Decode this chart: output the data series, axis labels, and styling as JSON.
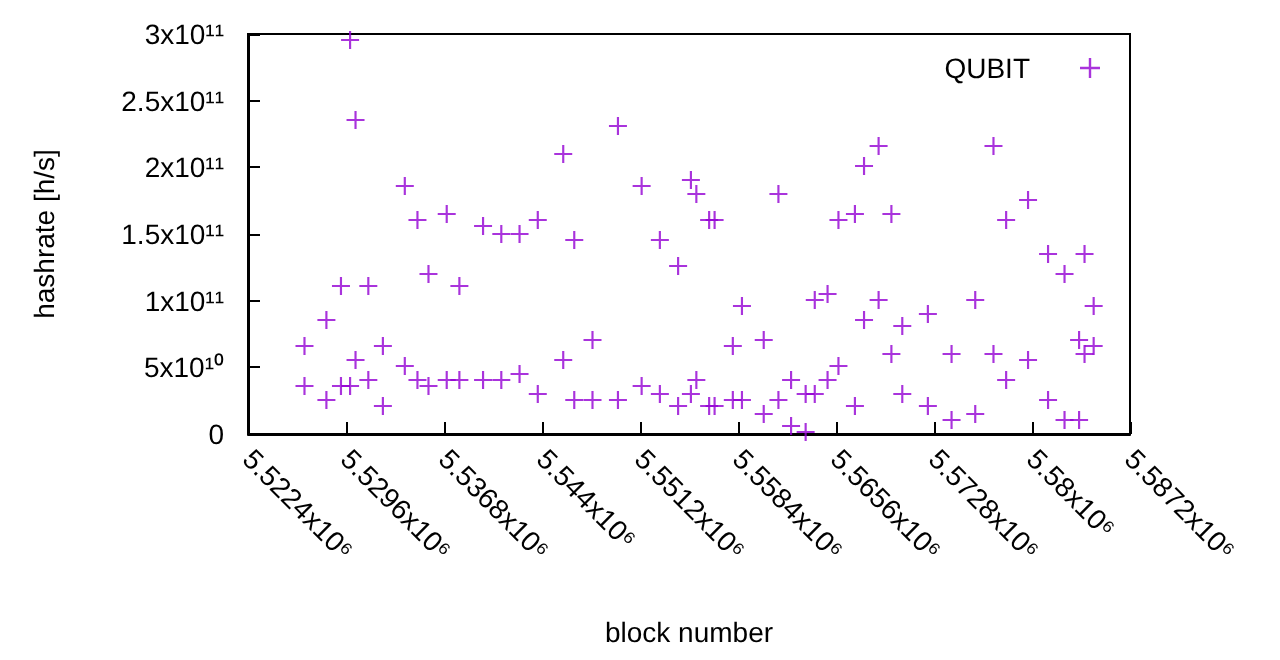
{
  "chart_data": {
    "type": "scatter",
    "xlabel": "block number",
    "ylabel": "hashrate [h/s]",
    "xlim": [
      5522400,
      5587200
    ],
    "xticks": [
      {
        "value": 5522400,
        "label": "5.5224x10⁶"
      },
      {
        "value": 5529600,
        "label": "5.5296x10⁶"
      },
      {
        "value": 5536800,
        "label": "5.5368x10⁶"
      },
      {
        "value": 5544000,
        "label": "5.544x10⁶"
      },
      {
        "value": 5551200,
        "label": "5.5512x10⁶"
      },
      {
        "value": 5558400,
        "label": "5.5584x10⁶"
      },
      {
        "value": 5565600,
        "label": "5.5656x10⁶"
      },
      {
        "value": 5572800,
        "label": "5.5728x10⁶"
      },
      {
        "value": 5580000,
        "label": "5.58x10⁶"
      },
      {
        "value": 5587200,
        "label": "5.5872x10⁶"
      }
    ],
    "ylim": [
      0,
      300000000000
    ],
    "yticks": [
      0,
      {
        "value": 50000000000,
        "label": "5x10¹⁰"
      },
      {
        "value": 100000000000,
        "label": "1x10¹¹"
      },
      {
        "value": 150000000000,
        "label": "1.5x10¹¹"
      },
      {
        "value": 200000000000,
        "label": "2x10¹¹"
      },
      {
        "value": 250000000000,
        "label": "2.5x10¹¹"
      },
      {
        "value": 300000000000,
        "label": "3x10¹¹"
      }
    ],
    "grid": false,
    "legend": "top right",
    "marker": "cross",
    "series": [
      {
        "name": "QUBIT",
        "color": "#9400d3",
        "x": [
          5526550,
          5526550,
          5528160,
          5528160,
          5529230,
          5529230,
          5529900,
          5529900,
          5530300,
          5530300,
          5531240,
          5531240,
          5532310,
          5532310,
          5533920,
          5533920,
          5534850,
          5534850,
          5535660,
          5535660,
          5537000,
          5537000,
          5537930,
          5537930,
          5539670,
          5539670,
          5541010,
          5541010,
          5542350,
          5542350,
          5543690,
          5543690,
          5545560,
          5545560,
          5546370,
          5546370,
          5547710,
          5547710,
          5549580,
          5549580,
          5551320,
          5551320,
          5552660,
          5552660,
          5554000,
          5554000,
          5554940,
          5554940,
          5555340,
          5555340,
          5556280,
          5556280,
          5556680,
          5556680,
          5558020,
          5558020,
          5558690,
          5558690,
          5560290,
          5560290,
          5561370,
          5561370,
          5562300,
          5562300,
          5563370,
          5563370,
          5564040,
          5564040,
          5564980,
          5564980,
          5565780,
          5565780,
          5566990,
          5566990,
          5567660,
          5567660,
          5568730,
          5568730,
          5569670,
          5569670,
          5570470,
          5570470,
          5572350,
          5572350,
          5574090,
          5574090,
          5575830,
          5575830,
          5577170,
          5577170,
          5578100,
          5578100,
          5579710,
          5579710,
          5581180,
          5581180,
          5582390,
          5582390,
          5583460,
          5583460,
          5583860,
          5583860,
          5584530,
          5584530
        ],
        "values": [
          66000000000.0,
          36000000000.0,
          85500000000.0,
          25500000000.0,
          111000000000.0,
          36000000000.0,
          295500000000.0,
          36000000000.0,
          235500000000.0,
          55500000000.0,
          111000000000.0,
          40500000000.0,
          66000000000.0,
          21000000000.0,
          186000000000.0,
          51000000000.0,
          160500000000.0,
          40500000000.0,
          120000000000.0,
          36000000000.0,
          165000000000.0,
          40500000000.0,
          111000000000.0,
          40500000000.0,
          156000000000.0,
          40500000000.0,
          150000000000.0,
          40500000000.0,
          150000000000.0,
          45000000000.0,
          160500000000.0,
          30000000000.0,
          210000000000.0,
          55500000000.0,
          145500000000.0,
          25500000000.0,
          70500000000.0,
          25500000000.0,
          231000000000.0,
          25500000000.0,
          186000000000.0,
          36000000000.0,
          145500000000.0,
          30000000000.0,
          126000000000.0,
          21000000000.0,
          190500000000.0,
          30000000000.0,
          180000000000.0,
          40500000000.0,
          160500000000.0,
          21000000000.0,
          160500000000.0,
          21000000000.0,
          66000000000.0,
          25500000000.0,
          96000000000.0,
          25500000000.0,
          70500000000.0,
          15000000000.0,
          180000000000.0,
          25500000000.0,
          40500000000.0,
          6000000000.0,
          30000000000.0,
          1500000000.0,
          100500000000.0,
          30000000000.0,
          105000000000.0,
          40500000000.0,
          160500000000.0,
          51000000000.0,
          165000000000.0,
          21000000000.0,
          201000000000.0,
          85500000000.0,
          216000000000.0,
          100500000000.0,
          165000000000.0,
          60000000000.0,
          81000000000.0,
          30000000000.0,
          90000000000.0,
          21000000000.0,
          60000000000.0,
          10500000000.0,
          100500000000.0,
          15000000000.0,
          216000000000.0,
          60000000000.0,
          160500000000.0,
          40500000000.0,
          175500000000.0,
          55500000000.0,
          135000000000.0,
          25500000000.0,
          120000000000.0,
          10500000000.0,
          70500000000.0,
          10500000000.0,
          135000000000.0,
          60000000000.0,
          96000000000.0,
          66000000000.0
        ]
      }
    ]
  }
}
